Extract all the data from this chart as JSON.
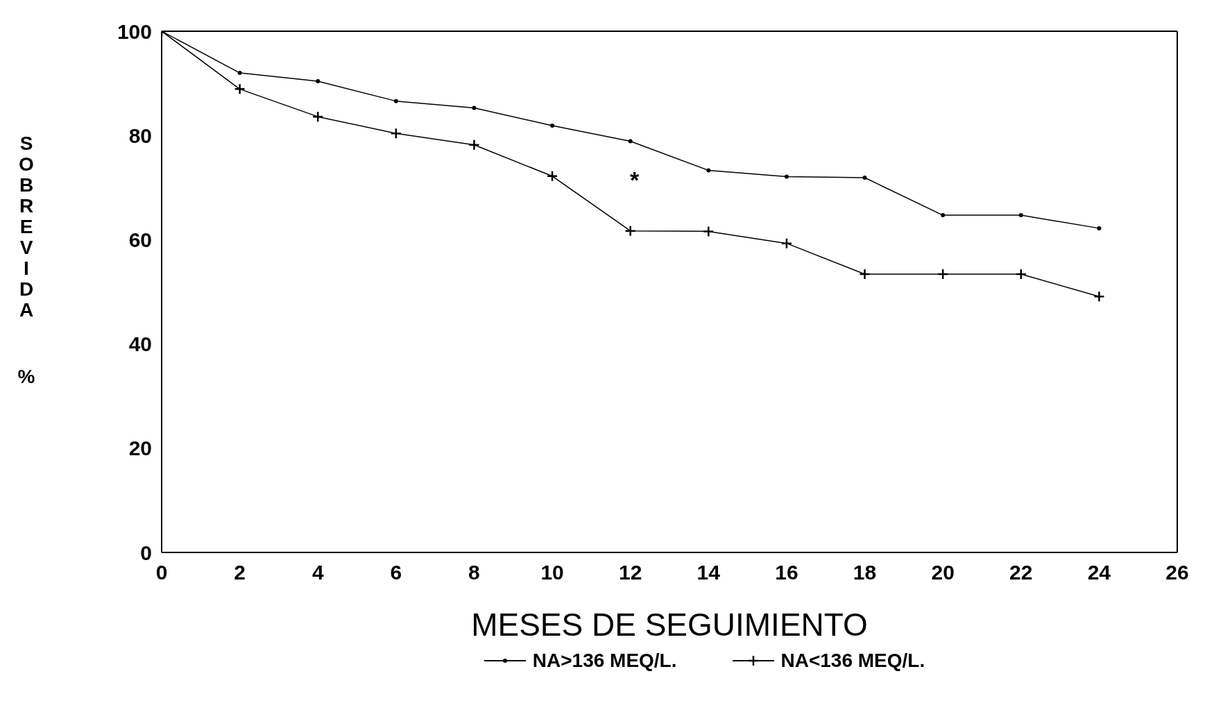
{
  "chart_data": {
    "type": "line",
    "xlabel": "MESES DE SEGUIMIENTO",
    "ylabel": "SOBREVIDA %",
    "x": [
      0,
      2,
      4,
      6,
      8,
      10,
      12,
      14,
      16,
      18,
      20,
      22,
      24
    ],
    "series": [
      {
        "name": "NA>136 MEQ/L.",
        "color": "#000000",
        "marker": "circle",
        "values": [
          100,
          92,
          90.4,
          86.6,
          85.3,
          81.9,
          78.9,
          73.3,
          72.1,
          71.9,
          64.7,
          64.7,
          62.2
        ]
      },
      {
        "name": "NA<136 MEQ/L.",
        "color": "#000000",
        "marker": "cross",
        "values": [
          100,
          88.9,
          83.6,
          80.4,
          78.2,
          72.2,
          61.7,
          61.6,
          59.3,
          53.4,
          53.4,
          53.4,
          49.1
        ]
      }
    ],
    "xlim": [
      0,
      26
    ],
    "xticks": [
      0,
      2,
      4,
      6,
      8,
      10,
      12,
      14,
      16,
      18,
      20,
      22,
      24,
      26
    ],
    "ylim": [
      0,
      100
    ],
    "yticks": [
      0,
      20,
      40,
      60,
      80,
      100
    ],
    "annotations": [
      "*"
    ],
    "grid": false,
    "legend": "bottom",
    "line_style": "solid"
  }
}
